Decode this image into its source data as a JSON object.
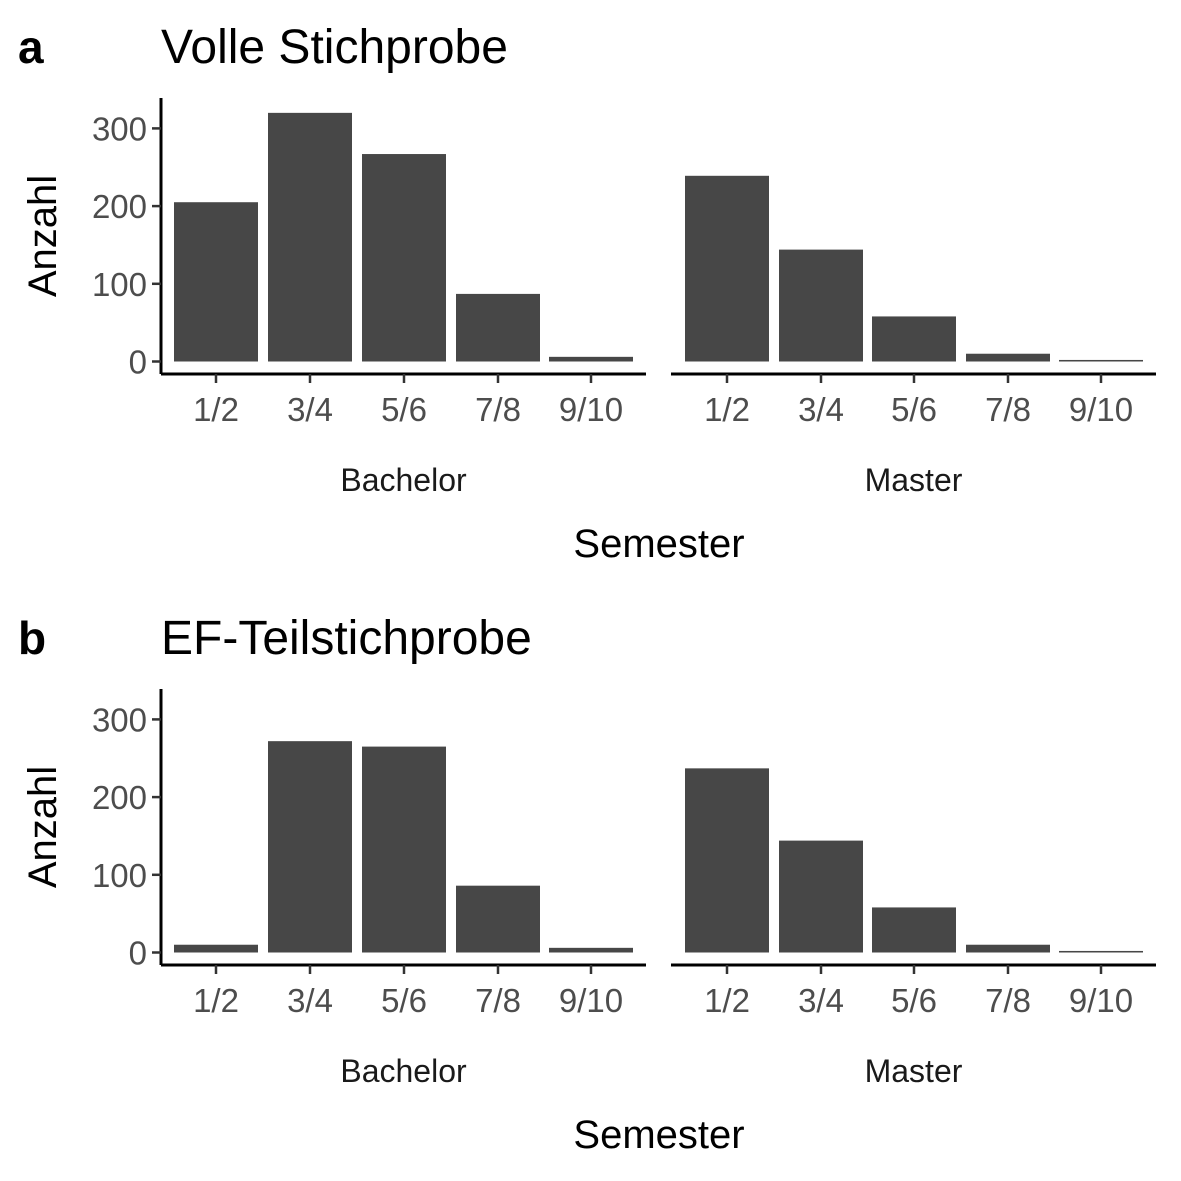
{
  "chart_data": [
    {
      "panel": "a",
      "type": "bar",
      "title": "Volle Stichprobe",
      "xlabel": "Semester",
      "ylabel": "Anzahl",
      "ylim": [
        0,
        340
      ],
      "yticks": [
        0,
        100,
        200,
        300
      ],
      "categories": [
        "1/2",
        "3/4",
        "5/6",
        "7/8",
        "9/10"
      ],
      "bar_color": "#474747",
      "grid": false,
      "facets": [
        {
          "name": "Bachelor",
          "values": [
            205,
            320,
            267,
            87,
            6
          ]
        },
        {
          "name": "Master",
          "values": [
            239,
            144,
            58,
            10,
            2
          ]
        }
      ]
    },
    {
      "panel": "b",
      "type": "bar",
      "title": "EF-Teilstichprobe",
      "xlabel": "Semester",
      "ylabel": "Anzahl",
      "ylim": [
        0,
        340
      ],
      "yticks": [
        0,
        100,
        200,
        300
      ],
      "categories": [
        "1/2",
        "3/4",
        "5/6",
        "7/8",
        "9/10"
      ],
      "bar_color": "#474747",
      "grid": false,
      "facets": [
        {
          "name": "Bachelor",
          "values": [
            10,
            272,
            265,
            86,
            6
          ]
        },
        {
          "name": "Master",
          "values": [
            237,
            144,
            58,
            10,
            2
          ]
        }
      ]
    }
  ]
}
